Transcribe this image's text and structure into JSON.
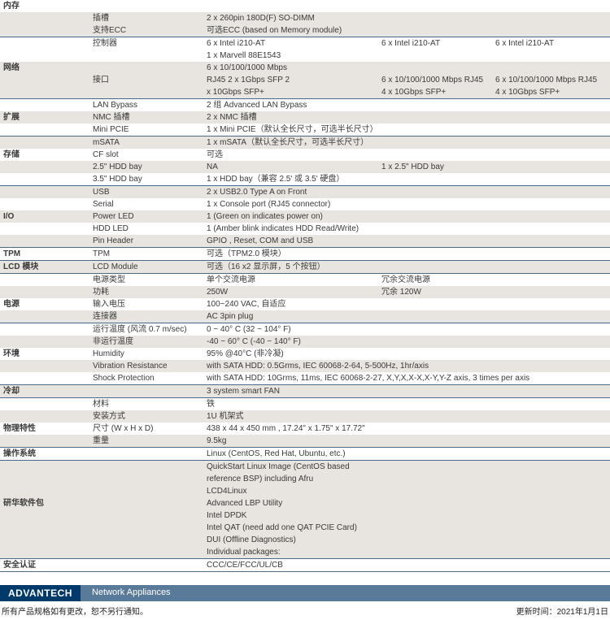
{
  "colors": {
    "divider": "#4a6a8a",
    "altRow": "#e8e4df",
    "logoBg": "#003a6b",
    "barBg": "#5a7a9a",
    "text": "#3a3a3a"
  },
  "rows": [
    {
      "cat": "内存",
      "sub": "",
      "v1": "",
      "v2": "",
      "v3": "",
      "cls": ""
    },
    {
      "cat": "",
      "sub": "插槽",
      "v1": "2 x 260pin 180D(F) SO-DIMM",
      "v2": "",
      "v3": "",
      "cls": "alt"
    },
    {
      "cat": "",
      "sub": "支持ECC",
      "v1": "可选ECC (based on Memory module)",
      "v2": "",
      "v3": "",
      "cls": "alt"
    },
    {
      "cat": "",
      "sub": "控制器",
      "v1": "6 x Intel i210-AT",
      "v2": "6 x Intel i210-AT",
      "v3": "6 x Intel i210-AT",
      "cls": "divider"
    },
    {
      "cat": "",
      "sub": "",
      "v1": "1 x Marvell 88E1543",
      "v2": "",
      "v3": "",
      "cls": ""
    },
    {
      "cat": "网络",
      "sub": "",
      "v1": "6 x 10/100/1000 Mbps",
      "v2": "",
      "v3": "",
      "cls": "alt"
    },
    {
      "cat": "",
      "sub": "接口",
      "v1": "RJ45 2 x 1Gbps SFP 2",
      "v2": "6 x 10/100/1000 Mbps RJ45",
      "v3": "6 x 10/100/1000 Mbps RJ45",
      "cls": "alt"
    },
    {
      "cat": "",
      "sub": "",
      "v1": "x 10Gbps SFP+",
      "v2": "4 x 10Gbps SFP+",
      "v3": "4 x 10Gbps SFP+",
      "cls": "alt"
    },
    {
      "cat": "",
      "sub": "LAN Bypass",
      "v1": "2 组 Advanced LAN Bypass",
      "v2": "",
      "v3": "",
      "cls": "divider"
    },
    {
      "cat": "扩展",
      "sub": "NMC 插槽",
      "v1": "2 x NMC 插槽",
      "v2": "",
      "v3": "",
      "cls": "alt"
    },
    {
      "cat": "",
      "sub": "Mini PCIE",
      "v1": "1 x Mini PCIE（默认全长尺寸，可选半长尺寸）",
      "v2": "",
      "v3": "",
      "cls": ""
    },
    {
      "cat": "",
      "sub": "mSATA",
      "v1": "1 x mSATA（默认全长尺寸，可选半长尺寸）",
      "v2": "",
      "v3": "",
      "cls": "divider alt"
    },
    {
      "cat": "存储",
      "sub": "CF slot",
      "v1": "可选",
      "v2": "",
      "v3": "",
      "cls": ""
    },
    {
      "cat": "",
      "sub": "2.5\" HDD bay",
      "v1": "NA",
      "v2": "1 x 2.5\" HDD bay",
      "v3": "",
      "cls": "alt"
    },
    {
      "cat": "",
      "sub": "3.5\" HDD bay",
      "v1": "1 x HDD bay（兼容 2.5' 或 3.5' 硬盘）",
      "v2": "",
      "v3": "",
      "cls": ""
    },
    {
      "cat": "",
      "sub": "USB",
      "v1": "2 x USB2.0 Type A on Front",
      "v2": "",
      "v3": "",
      "cls": "divider alt"
    },
    {
      "cat": "",
      "sub": "Serial",
      "v1": "1 x Console port (RJ45 connector)",
      "v2": "",
      "v3": "",
      "cls": ""
    },
    {
      "cat": "I/O",
      "sub": "Power LED",
      "v1": "1 (Green on indicates power on)",
      "v2": "",
      "v3": "",
      "cls": "alt"
    },
    {
      "cat": "",
      "sub": "HDD LED",
      "v1": "1 (Amber blink indicates HDD Read/Write)",
      "v2": "",
      "v3": "",
      "cls": ""
    },
    {
      "cat": "",
      "sub": "Pin Header",
      "v1": "GPIO , Reset, COM and USB",
      "v2": "",
      "v3": "",
      "cls": "alt"
    },
    {
      "cat": "TPM",
      "sub": "TPM",
      "v1": "可选（TPM2.0 模块）",
      "v2": "",
      "v3": "",
      "cls": "divider"
    },
    {
      "cat": "LCD 模块",
      "sub": "LCD Module",
      "v1": "可选（16 x2 显示屏，5 个按钮）",
      "v2": "",
      "v3": "",
      "cls": "divider alt"
    },
    {
      "cat": "",
      "sub": "电源类型",
      "v1": "单个交流电源",
      "v2": "冗余交流电源",
      "v3": "",
      "cls": "divider"
    },
    {
      "cat": "",
      "sub": "功耗",
      "v1": "250W",
      "v2": "冗余 120W",
      "v3": "",
      "cls": "alt"
    },
    {
      "cat": "电源",
      "sub": "输入电压",
      "v1": "100~240 VAC, 自适应",
      "v2": "",
      "v3": "",
      "cls": ""
    },
    {
      "cat": "",
      "sub": "连接器",
      "v1": "AC 3pin plug",
      "v2": "",
      "v3": "",
      "cls": "alt"
    },
    {
      "cat": "",
      "sub": "运行温度 (风流 0.7 m/sec)",
      "v1": "0 ~ 40° C (32 ~ 104° F)",
      "v2": "",
      "v3": "",
      "cls": "divider"
    },
    {
      "cat": "",
      "sub": "非运行温度",
      "v1": "-40 ~ 60° C (-40 ~ 140° F)",
      "v2": "",
      "v3": "",
      "cls": "alt"
    },
    {
      "cat": "环境",
      "sub": "Humidity",
      "v1": "95% @40°C (非冷凝)",
      "v2": "",
      "v3": "",
      "cls": ""
    },
    {
      "cat": "",
      "sub": "Vibration Resistance",
      "v1": "with SATA HDD: 0.5Grms, IEC 60068-2-64, 5-500Hz, 1hr/axis",
      "v2": "",
      "v3": "",
      "cls": "alt",
      "span": true
    },
    {
      "cat": "",
      "sub": "Shock Protection",
      "v1": "with SATA HDD: 10Grms, 11ms, IEC 60068-2-27, X,Y,X,X-X,X-Y,Y-Z axis, 3 times per axis",
      "v2": "",
      "v3": "",
      "cls": "",
      "span": true
    },
    {
      "cat": "冷却",
      "sub": "",
      "v1": "3 system smart FAN",
      "v2": "",
      "v3": "",
      "cls": "divider alt"
    },
    {
      "cat": "",
      "sub": "材料",
      "v1": "铁",
      "v2": "",
      "v3": "",
      "cls": "divider"
    },
    {
      "cat": "",
      "sub": "安装方式",
      "v1": "1U 机架式",
      "v2": "",
      "v3": "",
      "cls": "alt"
    },
    {
      "cat": "物理特性",
      "sub": "尺寸 (W x H x D)",
      "v1": "438 x 44 x 450 mm , 17.24\" x 1.75\" x 17.72\"",
      "v2": "",
      "v3": "",
      "cls": ""
    },
    {
      "cat": "",
      "sub": "重量",
      "v1": "9.5kg",
      "v2": "",
      "v3": "",
      "cls": "alt"
    },
    {
      "cat": "操作系统",
      "sub": "",
      "v1": "Linux (CentOS, Red Hat, Ubuntu, etc.)",
      "v2": "",
      "v3": "",
      "cls": "divider"
    },
    {
      "cat": "",
      "sub": "",
      "v1": "QuickStart Linux Image (CentOS based",
      "v2": "",
      "v3": "",
      "cls": "divider alt"
    },
    {
      "cat": "",
      "sub": "",
      "v1": "reference BSP) including Afru",
      "v2": "",
      "v3": "",
      "cls": "alt"
    },
    {
      "cat": "",
      "sub": "",
      "v1": "LCD4Linux",
      "v2": "",
      "v3": "",
      "cls": "alt"
    },
    {
      "cat": "研华软件包",
      "sub": "",
      "v1": "Advanced LBP Utility",
      "v2": "",
      "v3": "",
      "cls": "alt"
    },
    {
      "cat": "",
      "sub": "",
      "v1": "Intel DPDK",
      "v2": "",
      "v3": "",
      "cls": "alt"
    },
    {
      "cat": "",
      "sub": "",
      "v1": "Intel QAT (need add one QAT PCIE Card)",
      "v2": "",
      "v3": "",
      "cls": "alt"
    },
    {
      "cat": "",
      "sub": "",
      "v1": "DUI (Offline Diagnostics)",
      "v2": "",
      "v3": "",
      "cls": "alt"
    },
    {
      "cat": "",
      "sub": "",
      "v1": "Individual packages:",
      "v2": "",
      "v3": "",
      "cls": "alt"
    },
    {
      "cat": "安全认证",
      "sub": "",
      "v1": "CCC/CE/FCC/UL/CB",
      "v2": "",
      "v3": "",
      "cls": "divider"
    },
    {
      "cat": "",
      "sub": "",
      "v1": "",
      "v2": "",
      "v3": "",
      "cls": "divider"
    }
  ],
  "footer": {
    "logo": "ADVANTECH",
    "title": "Network Appliances",
    "noteLeft": "所有产品规格如有更改，恕不另行通知。",
    "noteRight": "更新时间：2021年1月1日"
  }
}
